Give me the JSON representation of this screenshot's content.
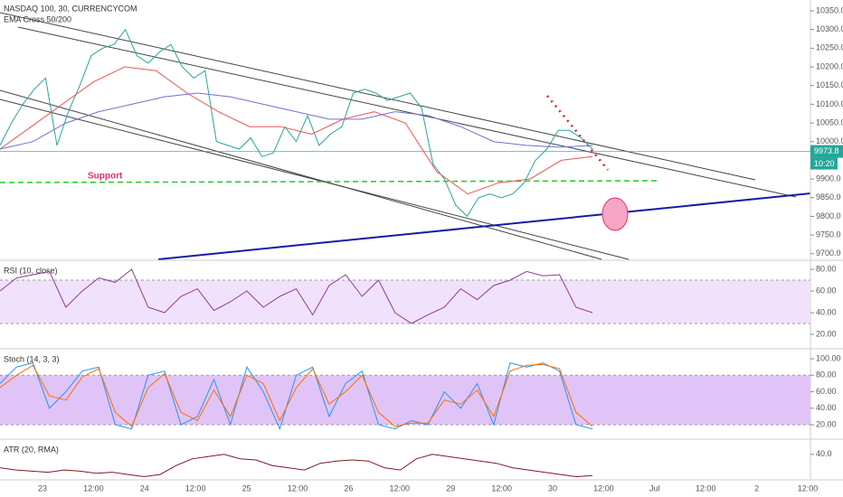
{
  "chart_data": [
    {
      "type": "line",
      "title": "NASDAQ 100, 30, CURRENCYCOM",
      "subtitle": "EMA Cross 50/200",
      "annotation": "Support",
      "last_price": {
        "value": 9973.8,
        "label": "9973.8"
      },
      "countdown": "10:20",
      "ylim": [
        9685,
        10379
      ],
      "yticks": [
        {
          "value": 10350,
          "label": "10350.0"
        },
        {
          "value": 10300,
          "label": "10300.0"
        },
        {
          "value": 10250,
          "label": "10250.0"
        },
        {
          "value": 10200,
          "label": "10200.0"
        },
        {
          "value": 10150,
          "label": "10150.0"
        },
        {
          "value": 10100,
          "label": "10100.0"
        },
        {
          "value": 10050,
          "label": "10050.0"
        },
        {
          "value": 10000,
          "label": "10000.0"
        },
        {
          "value": 9900,
          "label": "9900.0"
        },
        {
          "value": 9850,
          "label": "9850.0"
        },
        {
          "value": 9800,
          "label": "9800.0"
        },
        {
          "value": 9750,
          "label": "9750.0"
        },
        {
          "value": 9700,
          "label": "9700.0"
        }
      ],
      "series": [
        {
          "color": "#26a69a",
          "values": [
            9990,
            10050,
            10100,
            10140,
            10170,
            9990,
            10080,
            10150,
            10230,
            10250,
            10260,
            10300,
            10230,
            10210,
            10240,
            10260,
            10200,
            10170,
            10190,
            10000,
            9990,
            9980,
            10010,
            9960,
            9970,
            10040,
            10000,
            10070,
            9990,
            10020,
            10040,
            10130,
            10140,
            10130,
            10110,
            10120,
            10130,
            10090,
            9940,
            9900,
            9830,
            9800,
            9850,
            9860,
            9850,
            9860,
            9890,
            9950,
            9980,
            10030,
            10030,
            10010,
            9980
          ]
        },
        {
          "color": "#f05350",
          "values": [
            9980,
            10040,
            10100,
            10160,
            10200,
            10190,
            10130,
            10080,
            10040,
            10040,
            10020,
            10060,
            10080,
            10050,
            9920,
            9860,
            9890,
            9900,
            9950,
            9960
          ]
        },
        {
          "color": "#7070d0",
          "values": [
            9980,
            10000,
            10050,
            10080,
            10100,
            10120,
            10130,
            10120,
            10100,
            10080,
            10060,
            10060,
            10080,
            10070,
            10040,
            10000,
            9990,
            9985,
            9990
          ]
        }
      ]
    },
    {
      "type": "line",
      "title": "RSI (10, close)",
      "ylim": [
        7.5,
        86.7
      ],
      "band": [
        30,
        70
      ],
      "yticks": [
        {
          "value": 80,
          "label": "80.00"
        },
        {
          "value": 60,
          "label": "60.00"
        },
        {
          "value": 40,
          "label": "40.00"
        },
        {
          "value": 20,
          "label": "20.00"
        }
      ],
      "series": [
        {
          "color": "#8e3a9e",
          "values": [
            60,
            72,
            75,
            78,
            45,
            60,
            72,
            68,
            80,
            45,
            40,
            55,
            62,
            42,
            50,
            60,
            45,
            55,
            62,
            38,
            65,
            75,
            55,
            70,
            40,
            30,
            38,
            45,
            62,
            52,
            65,
            70,
            78,
            74,
            75,
            45,
            40
          ]
        }
      ]
    },
    {
      "type": "line",
      "title": "Stoch (14, 3, 3)",
      "ylim": [
        3.6,
        109.9
      ],
      "band": [
        20,
        80
      ],
      "yticks": [
        {
          "value": 100,
          "label": "100.00"
        },
        {
          "value": 80,
          "label": "80.00"
        },
        {
          "value": 60,
          "label": "60.00"
        },
        {
          "value": 40,
          "label": "40.00"
        },
        {
          "value": 20,
          "label": "20.00"
        }
      ],
      "series": [
        {
          "color": "#2196f3",
          "values": [
            70,
            90,
            95,
            40,
            60,
            85,
            90,
            20,
            15,
            80,
            85,
            20,
            30,
            75,
            20,
            90,
            60,
            15,
            80,
            90,
            30,
            70,
            85,
            20,
            15,
            25,
            20,
            60,
            40,
            70,
            20,
            95,
            90,
            95,
            85,
            20,
            15
          ]
        },
        {
          "color": "#ff6d00",
          "values": [
            65,
            80,
            92,
            55,
            50,
            78,
            88,
            35,
            18,
            65,
            82,
            35,
            25,
            62,
            30,
            80,
            70,
            25,
            65,
            88,
            45,
            60,
            80,
            35,
            18,
            22,
            22,
            50,
            45,
            62,
            30,
            85,
            92,
            93,
            88,
            35,
            18
          ]
        }
      ]
    },
    {
      "type": "line",
      "title": "ATR (20, RMA)",
      "ylim": [
        18,
        52
      ],
      "yticks": [
        {
          "value": 40,
          "label": "40.0"
        }
      ],
      "series": [
        {
          "color": "#801922",
          "values": [
            28,
            26,
            25,
            24,
            26,
            25,
            23,
            24,
            22,
            20,
            22,
            30,
            36,
            38,
            40,
            36,
            35,
            30,
            28,
            26,
            32,
            34,
            35,
            34,
            28,
            26,
            36,
            40,
            38,
            36,
            34,
            32,
            28,
            26,
            24,
            22,
            20,
            21
          ]
        }
      ]
    }
  ],
  "time_axis": [
    "23",
    "12:00",
    "24",
    "12:00",
    "25",
    "12:00",
    "26",
    "12:00",
    "29",
    "12:00",
    "30",
    "12:00",
    "Jul",
    "12:00",
    "2",
    "12:00"
  ]
}
